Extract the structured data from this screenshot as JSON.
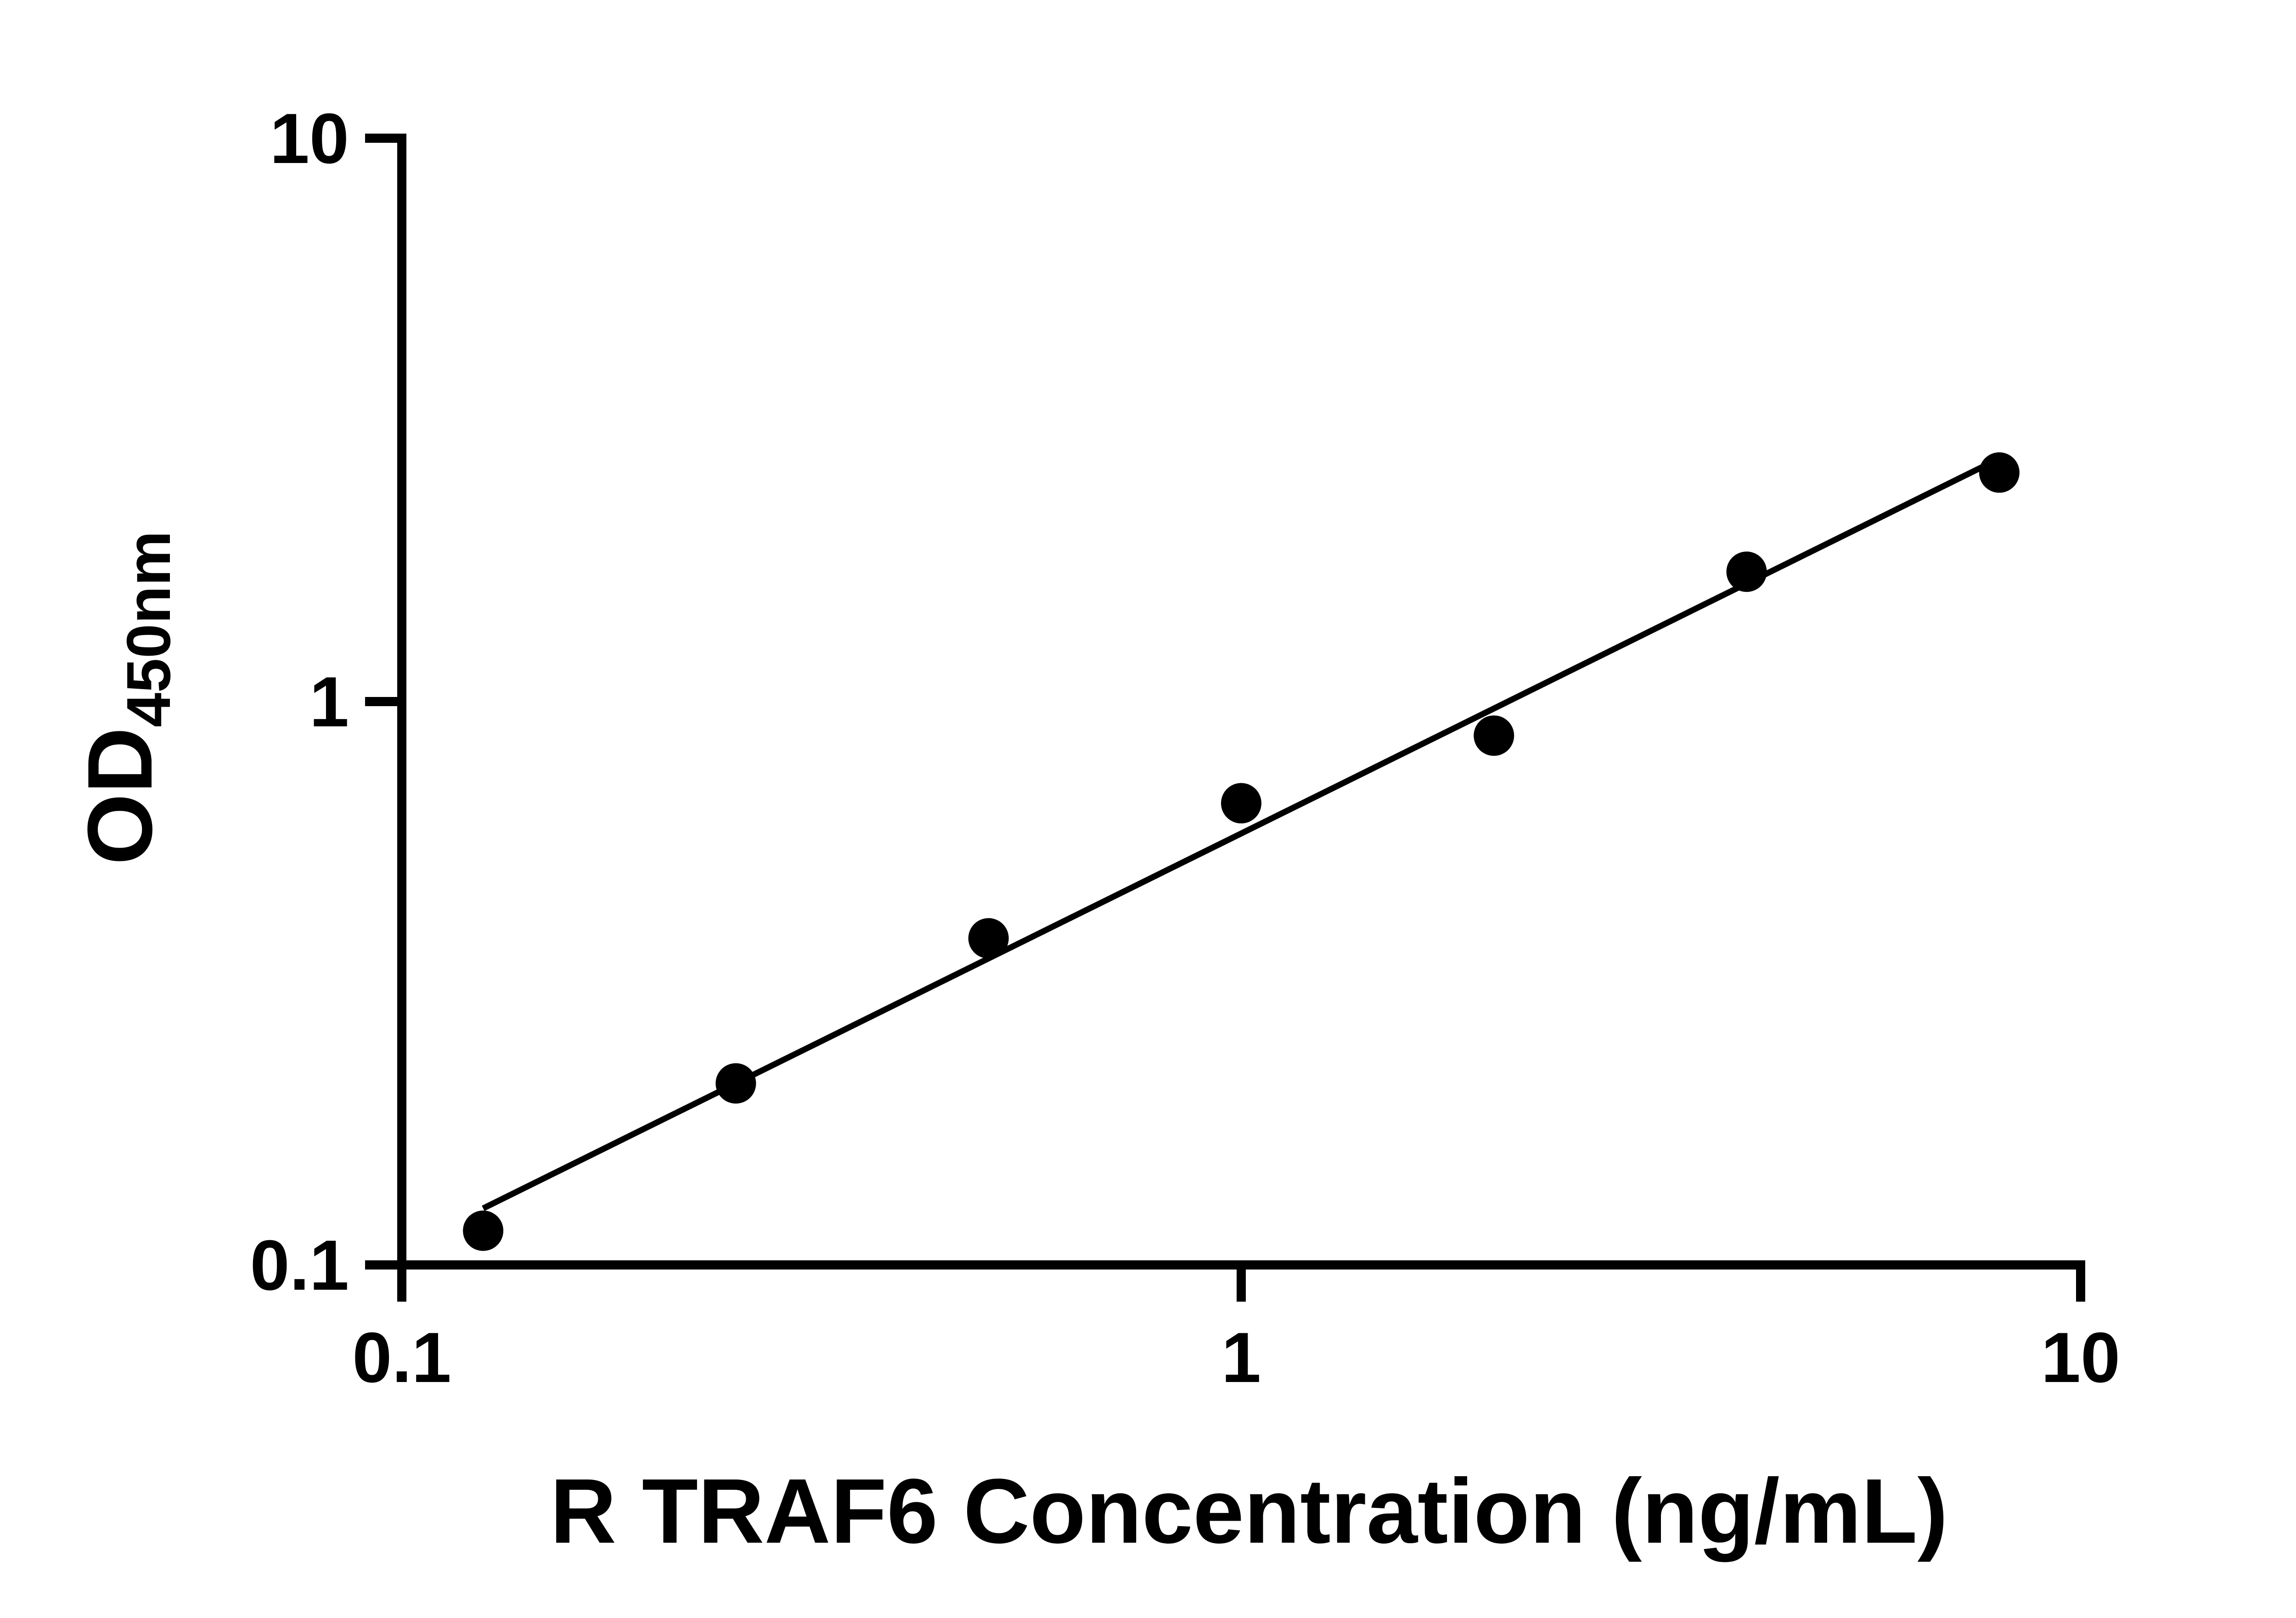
{
  "chart_data": {
    "type": "scatter",
    "title": "",
    "xlabel": "R TRAF6 Concentration (ng/mL)",
    "ylabel_main": "OD",
    "ylabel_sub": "450nm",
    "x_scale": "log",
    "y_scale": "log",
    "xlim": [
      0.1,
      10
    ],
    "ylim": [
      0.1,
      10
    ],
    "grid": false,
    "legend": "none",
    "x_ticks": [
      {
        "value": 0.1,
        "label": "0.1"
      },
      {
        "value": 1,
        "label": "1"
      },
      {
        "value": 10,
        "label": "10"
      }
    ],
    "y_ticks": [
      {
        "value": 0.1,
        "label": "0.1"
      },
      {
        "value": 1,
        "label": "1"
      },
      {
        "value": 10,
        "label": "10"
      }
    ],
    "points": [
      {
        "x": 0.125,
        "y": 0.115
      },
      {
        "x": 0.25,
        "y": 0.21
      },
      {
        "x": 0.5,
        "y": 0.38
      },
      {
        "x": 1,
        "y": 0.66
      },
      {
        "x": 2,
        "y": 0.87
      },
      {
        "x": 4,
        "y": 1.7
      },
      {
        "x": 8,
        "y": 2.55
      }
    ],
    "trend_line": {
      "x1": 0.125,
      "y1": 0.126,
      "x2": 8,
      "y2": 2.7
    },
    "marker_color": "#000000",
    "line_color": "#000000",
    "background": "#ffffff"
  }
}
